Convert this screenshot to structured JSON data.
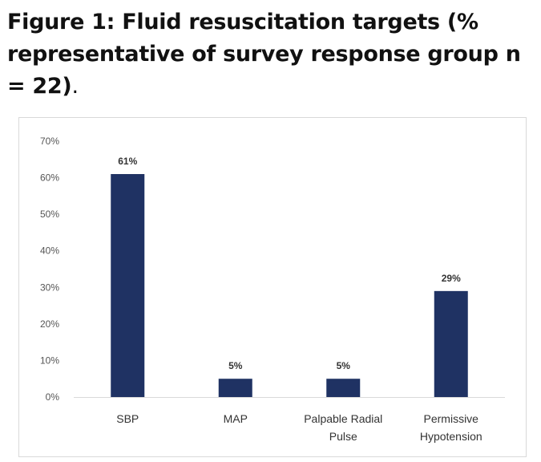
{
  "caption": {
    "main": "Figure 1: Fluid resuscitation targets (% representative of survey response group n = 22)",
    "trailing": "."
  },
  "colors": {
    "bar": "#1f3263",
    "axis": "#d9d9d9",
    "border": "#d9d9d9"
  },
  "chart_data": {
    "type": "bar",
    "title": "",
    "xlabel": "",
    "ylabel": "",
    "categories": [
      [
        "SBP"
      ],
      [
        "MAP"
      ],
      [
        "Palpable Radial",
        "Pulse"
      ],
      [
        "Permissive",
        "Hypotension"
      ]
    ],
    "values": [
      61,
      5,
      5,
      29
    ],
    "data_labels": [
      "61%",
      "5%",
      "5%",
      "29%"
    ],
    "ylim": [
      0,
      70
    ],
    "yticks": [
      0,
      10,
      20,
      30,
      40,
      50,
      60,
      70
    ],
    "ytick_labels": [
      "0%",
      "10%",
      "20%",
      "30%",
      "40%",
      "50%",
      "60%",
      "70%"
    ],
    "grid": false,
    "legend": "none"
  }
}
